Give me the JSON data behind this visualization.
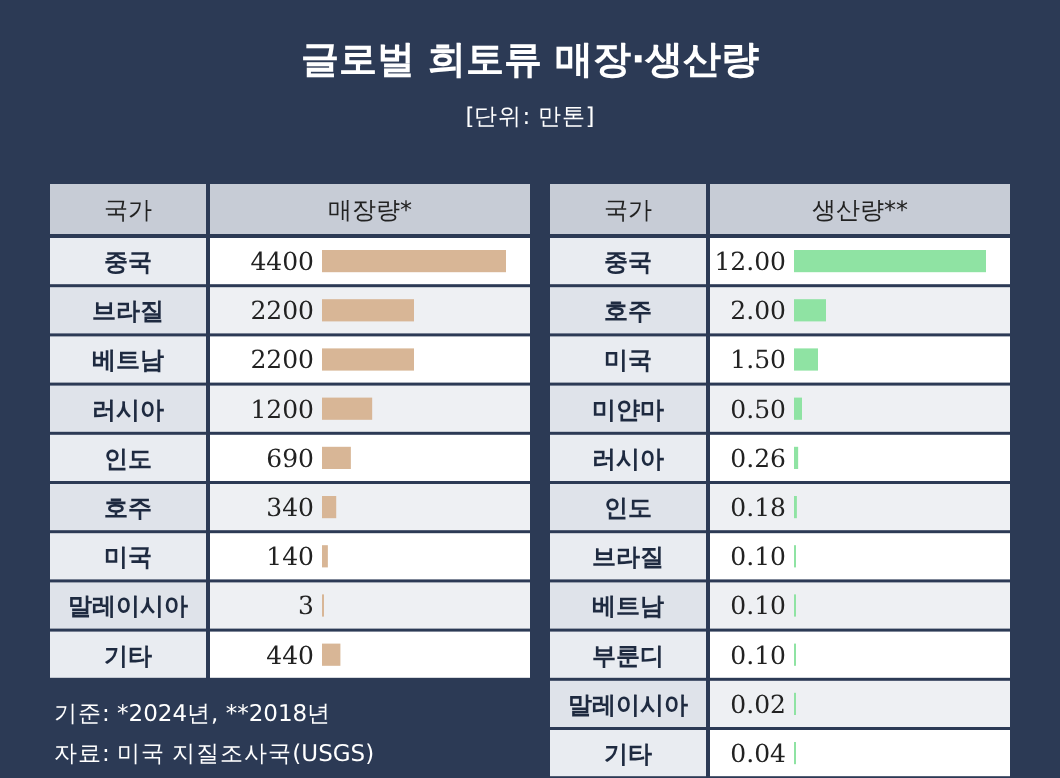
{
  "chart_data": [
    {
      "type": "bar",
      "orientation": "horizontal",
      "title": "글로벌 희토류 매장·생산량",
      "subtitle": "[단위: 만톤]",
      "ylabel": "국가",
      "xlabel": "매장량*",
      "color": "#d8b696",
      "data_labels": true,
      "categories": [
        "중국",
        "브라질",
        "베트남",
        "러시아",
        "인도",
        "호주",
        "미국",
        "말레이시아",
        "기타"
      ],
      "values": [
        4400,
        2200,
        2200,
        1200,
        690,
        340,
        140,
        3,
        440
      ],
      "annotations": [
        "기준: *2024년, **2018년",
        "자료: 미국 지질조사국(USGS)"
      ]
    },
    {
      "type": "bar",
      "orientation": "horizontal",
      "ylabel": "국가",
      "xlabel": "생산량**",
      "color": "#8fe3a3",
      "categories": [
        "중국",
        "호주",
        "미국",
        "미얀마",
        "러시아",
        "인도",
        "브라질",
        "베트남",
        "부룬디",
        "말레이시아",
        "기타"
      ],
      "values": [
        12,
        2,
        1.5,
        0.5,
        0.26,
        0.18,
        0.1,
        0.1,
        0.1,
        0.02,
        0.04
      ],
      "value_labels": [
        "12.00",
        "2.00",
        "1.50",
        "0.50",
        "0.26",
        "0.18",
        "0.10",
        "0.10",
        "0.10",
        "0.02",
        "0.04"
      ]
    }
  ]
}
